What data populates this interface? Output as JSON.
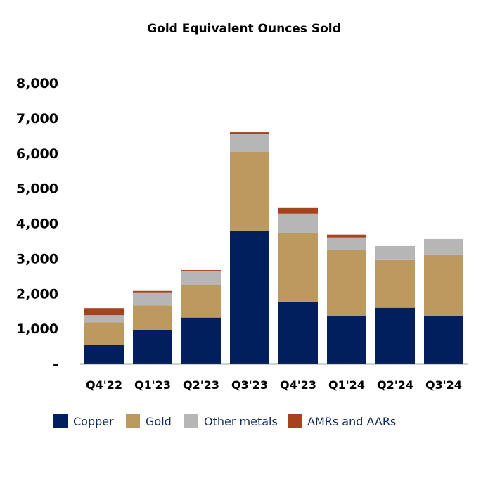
{
  "chart_data": {
    "type": "bar",
    "stacked": true,
    "title": "Gold Equivalent Ounces Sold",
    "xlabel": "",
    "ylabel": "",
    "ylim": [
      0,
      8000
    ],
    "yticks": [
      0,
      1000,
      2000,
      3000,
      4000,
      5000,
      6000,
      7000,
      8000
    ],
    "ytick_labels": [
      "-",
      "1,000",
      "2,000",
      "3,000",
      "4,000",
      "5,000",
      "6,000",
      "7,000",
      "8,000"
    ],
    "grid": false,
    "legend_position": "bottom",
    "categories": [
      "Q4'22",
      "Q1'23",
      "Q2'23",
      "Q3'23",
      "Q4'23",
      "Q1'24",
      "Q2'24",
      "Q3'24"
    ],
    "series": [
      {
        "name": "Copper",
        "color": "#001f5c",
        "values": [
          540,
          950,
          1310,
          3790,
          1750,
          1345,
          1590,
          1345
        ]
      },
      {
        "name": "Gold",
        "color": "#bc9a5f",
        "values": [
          640,
          710,
          920,
          2245,
          1965,
          1890,
          1360,
          1765
        ]
      },
      {
        "name": "Other metals",
        "color": "#b6b6b6",
        "values": [
          200,
          370,
          400,
          520,
          560,
          360,
          400,
          440
        ]
      },
      {
        "name": "AMRs and AARs",
        "color": "#a5431f",
        "values": [
          200,
          40,
          35,
          40,
          160,
          80,
          0,
          0
        ]
      }
    ]
  }
}
